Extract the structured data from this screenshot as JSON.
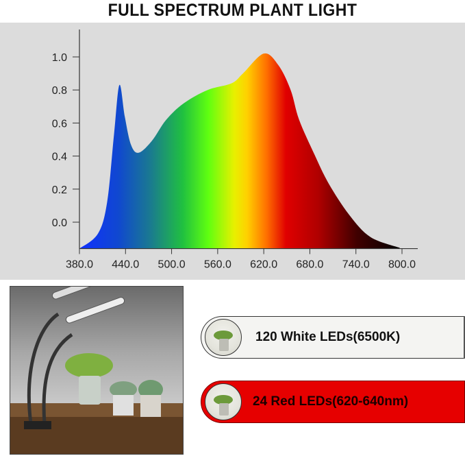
{
  "title": "FULL SPECTRUM PLANT LIGHT",
  "chart_data": {
    "type": "area",
    "title": "FULL SPECTRUM PLANT LIGHT",
    "xlabel": "",
    "ylabel": "",
    "xlim": [
      380,
      810
    ],
    "ylim": [
      -0.16,
      1.08
    ],
    "x_ticks": [
      "380.0",
      "440.0",
      "500.0",
      "560.0",
      "620.0",
      "680.0",
      "740.0",
      "800.0"
    ],
    "y_ticks": [
      "0.0",
      "0.2",
      "0.4",
      "0.6",
      "0.8",
      "1.0"
    ],
    "grid": false,
    "fill": "spectral gradient (blue to green to yellow to red to black)",
    "x": [
      380,
      404,
      416,
      425,
      432,
      439,
      447,
      457,
      474,
      493,
      516,
      547,
      578,
      593,
      620,
      639,
      655,
      666,
      686,
      705,
      732,
      759,
      797
    ],
    "y": [
      -0.16,
      -0.07,
      0.12,
      0.53,
      0.83,
      0.64,
      0.47,
      0.42,
      0.49,
      0.62,
      0.72,
      0.8,
      0.84,
      0.9,
      1.02,
      0.95,
      0.8,
      0.62,
      0.41,
      0.23,
      0.04,
      -0.09,
      -0.155
    ]
  },
  "legend": {
    "white": {
      "label": "120 White LEDs(6500K)",
      "color": "#f4f4f2"
    },
    "red": {
      "label": "24 Red LEDs(620-640nm)",
      "color": "#e60000"
    }
  }
}
